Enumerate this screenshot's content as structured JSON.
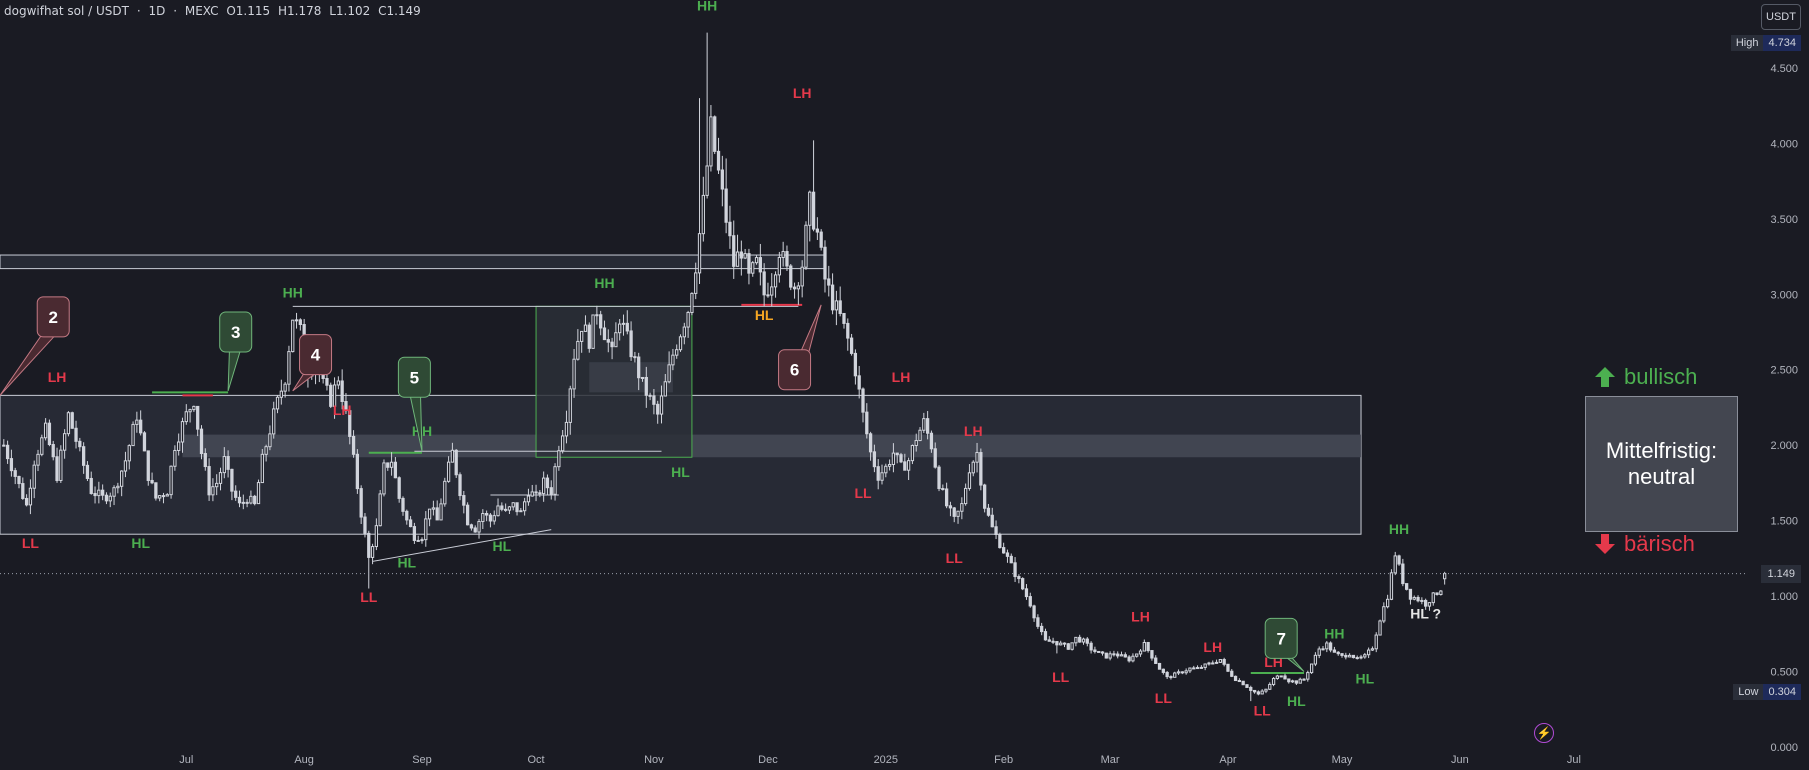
{
  "header": {
    "symbol": "dogwifhat sol / USDT",
    "interval": "1D",
    "exchange": "MEXC",
    "open": "O1.115",
    "high": "H1.178",
    "low": "L1.102",
    "close": "C1.149"
  },
  "currency_label": "USDT",
  "high_badge": {
    "label": "High",
    "value": "4.734"
  },
  "low_badge": {
    "label": "Low",
    "value": "0.304"
  },
  "last_price": "1.149",
  "bull_label": "bullisch",
  "bear_label": "bärisch",
  "outlook_lines": [
    "Mittelfristig:",
    "neutral"
  ],
  "colors": {
    "green": "#4caf50",
    "red": "#e5394b",
    "orange": "#f5a623",
    "candle": "#d1d4dc",
    "background": "#1a1b23"
  },
  "chart_data": {
    "type": "candlestick",
    "instrument": "dogwifhat sol / USDT",
    "timeframe": "1D",
    "price_axis": {
      "ticks": [
        0.0,
        0.5,
        1.0,
        1.5,
        2.0,
        2.5,
        3.0,
        3.5,
        4.0,
        4.5
      ],
      "tick_labels": [
        "0.000",
        "0.500",
        "1.000",
        "1.500",
        "2.000",
        "2.500",
        "3.000",
        "3.500",
        "4.000",
        "4.500"
      ],
      "range": [
        -0.02,
        4.95
      ]
    },
    "time_axis": {
      "labels": [
        "Jul",
        "Aug",
        "Sep",
        "Oct",
        "Nov",
        "Dec",
        "2025",
        "Feb",
        "Mar",
        "Apr",
        "May",
        "Jun",
        "Jul"
      ],
      "label_days": [
        0,
        31,
        62,
        92,
        123,
        153,
        184,
        215,
        243,
        274,
        304,
        335,
        365
      ],
      "range": [
        -49,
        410
      ]
    },
    "close_path": [
      [
        -48,
        2.0
      ],
      [
        -45,
        1.8
      ],
      [
        -42,
        1.6
      ],
      [
        -40,
        1.9
      ],
      [
        -37,
        2.1
      ],
      [
        -34,
        1.8
      ],
      [
        -31,
        2.2
      ],
      [
        -28,
        1.95
      ],
      [
        -25,
        1.7
      ],
      [
        -22,
        1.65
      ],
      [
        -19,
        1.7
      ],
      [
        -16,
        1.9
      ],
      [
        -13,
        2.2
      ],
      [
        -10,
        1.8
      ],
      [
        -8,
        1.65
      ],
      [
        -5,
        1.7
      ],
      [
        -3,
        2.0
      ],
      [
        0,
        2.2
      ],
      [
        2,
        2.3
      ],
      [
        4,
        1.95
      ],
      [
        6,
        1.7
      ],
      [
        8,
        1.75
      ],
      [
        10,
        1.9
      ],
      [
        12,
        1.7
      ],
      [
        14,
        1.6
      ],
      [
        16,
        1.65
      ],
      [
        18,
        1.6
      ],
      [
        20,
        1.9
      ],
      [
        23,
        2.2
      ],
      [
        26,
        2.45
      ],
      [
        28,
        2.85
      ],
      [
        30,
        2.75
      ],
      [
        32,
        2.5
      ],
      [
        34,
        2.55
      ],
      [
        36,
        2.4
      ],
      [
        38,
        2.3
      ],
      [
        40,
        2.45
      ],
      [
        42,
        2.2
      ],
      [
        44,
        1.9
      ],
      [
        46,
        1.55
      ],
      [
        48,
        1.25
      ],
      [
        50,
        1.45
      ],
      [
        52,
        1.85
      ],
      [
        54,
        1.9
      ],
      [
        56,
        1.65
      ],
      [
        58,
        1.5
      ],
      [
        60,
        1.4
      ],
      [
        62,
        1.4
      ],
      [
        64,
        1.6
      ],
      [
        66,
        1.5
      ],
      [
        68,
        1.75
      ],
      [
        70,
        1.95
      ],
      [
        72,
        1.7
      ],
      [
        74,
        1.5
      ],
      [
        76,
        1.45
      ],
      [
        78,
        1.55
      ],
      [
        80,
        1.5
      ],
      [
        82,
        1.6
      ],
      [
        84,
        1.55
      ],
      [
        86,
        1.6
      ],
      [
        88,
        1.55
      ],
      [
        90,
        1.7
      ],
      [
        92,
        1.65
      ],
      [
        94,
        1.75
      ],
      [
        96,
        1.7
      ],
      [
        98,
        2.0
      ],
      [
        100,
        2.2
      ],
      [
        102,
        2.6
      ],
      [
        104,
        2.8
      ],
      [
        106,
        2.7
      ],
      [
        108,
        2.9
      ],
      [
        110,
        2.75
      ],
      [
        112,
        2.6
      ],
      [
        114,
        2.85
      ],
      [
        116,
        2.7
      ],
      [
        118,
        2.55
      ],
      [
        120,
        2.4
      ],
      [
        122,
        2.3
      ],
      [
        124,
        2.2
      ],
      [
        126,
        2.4
      ],
      [
        128,
        2.6
      ],
      [
        130,
        2.75
      ],
      [
        132,
        2.9
      ],
      [
        134,
        3.2
      ],
      [
        136,
        3.6
      ],
      [
        138,
        4.1
      ],
      [
        140,
        3.8
      ],
      [
        142,
        3.5
      ],
      [
        144,
        3.2
      ],
      [
        146,
        3.3
      ],
      [
        148,
        3.1
      ],
      [
        150,
        3.2
      ],
      [
        152,
        3.0
      ],
      [
        154,
        3.1
      ],
      [
        156,
        3.3
      ],
      [
        158,
        3.15
      ],
      [
        160,
        3.05
      ],
      [
        162,
        3.2
      ],
      [
        164,
        3.6
      ],
      [
        166,
        3.4
      ],
      [
        168,
        3.1
      ],
      [
        170,
        2.95
      ],
      [
        172,
        2.85
      ],
      [
        174,
        2.7
      ],
      [
        176,
        2.5
      ],
      [
        178,
        2.2
      ],
      [
        180,
        1.95
      ],
      [
        182,
        1.8
      ],
      [
        184,
        1.85
      ],
      [
        186,
        1.95
      ],
      [
        188,
        1.85
      ],
      [
        190,
        1.9
      ],
      [
        192,
        2.05
      ],
      [
        194,
        2.15
      ],
      [
        196,
        2.0
      ],
      [
        198,
        1.75
      ],
      [
        200,
        1.6
      ],
      [
        202,
        1.5
      ],
      [
        204,
        1.6
      ],
      [
        206,
        1.85
      ],
      [
        208,
        1.95
      ],
      [
        210,
        1.6
      ],
      [
        212,
        1.45
      ],
      [
        214,
        1.35
      ],
      [
        216,
        1.25
      ],
      [
        218,
        1.15
      ],
      [
        220,
        1.05
      ],
      [
        222,
        0.95
      ],
      [
        224,
        0.8
      ],
      [
        226,
        0.7
      ],
      [
        228,
        0.7
      ],
      [
        230,
        0.68
      ],
      [
        232,
        0.66
      ],
      [
        234,
        0.72
      ],
      [
        236,
        0.7
      ],
      [
        238,
        0.65
      ],
      [
        240,
        0.62
      ],
      [
        242,
        0.6
      ],
      [
        244,
        0.62
      ],
      [
        246,
        0.6
      ],
      [
        248,
        0.58
      ],
      [
        250,
        0.62
      ],
      [
        252,
        0.68
      ],
      [
        254,
        0.6
      ],
      [
        256,
        0.52
      ],
      [
        258,
        0.46
      ],
      [
        260,
        0.48
      ],
      [
        262,
        0.5
      ],
      [
        264,
        0.52
      ],
      [
        266,
        0.52
      ],
      [
        268,
        0.54
      ],
      [
        270,
        0.56
      ],
      [
        272,
        0.58
      ],
      [
        274,
        0.5
      ],
      [
        276,
        0.45
      ],
      [
        278,
        0.42
      ],
      [
        280,
        0.38
      ],
      [
        282,
        0.35
      ],
      [
        284,
        0.38
      ],
      [
        286,
        0.45
      ],
      [
        288,
        0.48
      ],
      [
        290,
        0.44
      ],
      [
        292,
        0.43
      ],
      [
        294,
        0.45
      ],
      [
        296,
        0.55
      ],
      [
        298,
        0.65
      ],
      [
        300,
        0.68
      ],
      [
        302,
        0.62
      ],
      [
        304,
        0.6
      ],
      [
        306,
        0.62
      ],
      [
        308,
        0.58
      ],
      [
        310,
        0.6
      ],
      [
        312,
        0.66
      ],
      [
        314,
        0.85
      ],
      [
        316,
        1.0
      ],
      [
        318,
        1.28
      ],
      [
        320,
        1.1
      ],
      [
        322,
        1.0
      ],
      [
        324,
        0.98
      ],
      [
        326,
        0.95
      ],
      [
        328,
        1.0
      ],
      [
        330,
        1.05
      ],
      [
        331,
        1.149
      ]
    ],
    "spike_highs": [
      [
        137,
        4.734
      ],
      [
        165,
        4.02
      ],
      [
        135,
        4.3
      ],
      [
        142,
        3.9
      ],
      [
        214,
        1.42
      ]
    ],
    "spike_lows": [
      [
        48,
        1.05
      ],
      [
        280,
        0.304
      ],
      [
        229,
        0.62
      ]
    ],
    "zones": [
      {
        "name": "main-range",
        "x": [
          -49,
          309
        ],
        "y": [
          1.41,
          2.33
        ],
        "fill": "#2a2d38",
        "stroke": "#c9ccd6"
      },
      {
        "name": "mid-band",
        "x": [
          -1,
          309
        ],
        "y": [
          1.92,
          2.07
        ],
        "fill": "#474a56",
        "stroke": "none"
      },
      {
        "name": "upper-bar",
        "x": [
          -49,
          168
        ],
        "y": [
          3.17,
          3.26
        ],
        "fill": "#2a2d38",
        "stroke": "#c9ccd6"
      },
      {
        "name": "oct-box",
        "x": [
          92,
          133
        ],
        "y": [
          1.92,
          2.92
        ],
        "fill": "#2b2f37",
        "stroke": "#4caf50"
      },
      {
        "name": "oct-inner-box",
        "x": [
          106,
          128
        ],
        "y": [
          2.35,
          2.55
        ],
        "fill": "#3b3f4a",
        "stroke": "none"
      }
    ],
    "lines": [
      {
        "from": [
          28,
          2.92
        ],
        "to": [
          161,
          2.92
        ],
        "color": "#c9ccd6"
      },
      {
        "from": [
          -9,
          2.35
        ],
        "to": [
          11,
          2.35
        ],
        "color": "#4caf50"
      },
      {
        "from": [
          48,
          1.95
        ],
        "to": [
          62,
          1.95
        ],
        "color": "#4caf50"
      },
      {
        "from": [
          60,
          1.96
        ],
        "to": [
          125,
          1.96
        ],
        "color": "#c9ccd6"
      },
      {
        "from": [
          49,
          1.23
        ],
        "to": [
          96,
          1.44
        ],
        "color": "#c9ccd6"
      },
      {
        "from": [
          80,
          1.67
        ],
        "to": [
          98,
          1.67
        ],
        "color": "#c9ccd6"
      },
      {
        "from": [
          146,
          2.93
        ],
        "to": [
          162,
          2.93
        ],
        "color": "#e5394b"
      },
      {
        "from": [
          280,
          0.49
        ],
        "to": [
          294,
          0.49
        ],
        "color": "#4caf50"
      },
      {
        "from": [
          -1,
          2.33
        ],
        "to": [
          7,
          2.33
        ],
        "color": "#e5394b"
      }
    ],
    "annotations": [
      {
        "text": "HH",
        "x": 137,
        "y": 4.88,
        "color": "green"
      },
      {
        "text": "LH",
        "x": 162,
        "y": 4.3,
        "color": "red"
      },
      {
        "text": "HH",
        "x": 28,
        "y": 2.98,
        "color": "green"
      },
      {
        "text": "LH",
        "x": -34,
        "y": 2.42,
        "color": "red"
      },
      {
        "text": "LL",
        "x": -41,
        "y": 1.32,
        "color": "red"
      },
      {
        "text": "HL",
        "x": -12,
        "y": 1.32,
        "color": "green"
      },
      {
        "text": "LH",
        "x": 41,
        "y": 2.2,
        "color": "red"
      },
      {
        "text": "HH",
        "x": 62,
        "y": 2.06,
        "color": "green"
      },
      {
        "text": "LL",
        "x": 48,
        "y": 0.96,
        "color": "red"
      },
      {
        "text": "HL",
        "x": 58,
        "y": 1.19,
        "color": "green"
      },
      {
        "text": "HL",
        "x": 83,
        "y": 1.3,
        "color": "green"
      },
      {
        "text": "HH",
        "x": 110,
        "y": 3.04,
        "color": "green"
      },
      {
        "text": "HL",
        "x": 130,
        "y": 1.79,
        "color": "green"
      },
      {
        "text": "HL",
        "x": 152,
        "y": 2.83,
        "color": "orange"
      },
      {
        "text": "LH",
        "x": 188,
        "y": 2.42,
        "color": "red"
      },
      {
        "text": "LL",
        "x": 178,
        "y": 1.65,
        "color": "red"
      },
      {
        "text": "LH",
        "x": 207,
        "y": 2.06,
        "color": "red"
      },
      {
        "text": "LL",
        "x": 202,
        "y": 1.22,
        "color": "red"
      },
      {
        "text": "LL",
        "x": 230,
        "y": 0.43,
        "color": "red"
      },
      {
        "text": "LH",
        "x": 251,
        "y": 0.83,
        "color": "red"
      },
      {
        "text": "LL",
        "x": 257,
        "y": 0.29,
        "color": "red"
      },
      {
        "text": "LH",
        "x": 270,
        "y": 0.63,
        "color": "red"
      },
      {
        "text": "LL",
        "x": 283,
        "y": 0.21,
        "color": "red"
      },
      {
        "text": "LH",
        "x": 286,
        "y": 0.53,
        "color": "red"
      },
      {
        "text": "HL",
        "x": 292,
        "y": 0.27,
        "color": "green"
      },
      {
        "text": "HH",
        "x": 302,
        "y": 0.72,
        "color": "green"
      },
      {
        "text": "HL",
        "x": 310,
        "y": 0.42,
        "color": "green"
      },
      {
        "text": "HH",
        "x": 319,
        "y": 1.41,
        "color": "green"
      },
      {
        "text": "HL ?",
        "x": 326,
        "y": 0.85,
        "color": "white"
      }
    ],
    "callouts": [
      {
        "text": "2",
        "x": -35,
        "y": 2.85,
        "tip": [
          -49,
          2.33
        ],
        "style": "red"
      },
      {
        "text": "3",
        "x": 13,
        "y": 2.75,
        "tip": [
          11,
          2.36
        ],
        "style": "green"
      },
      {
        "text": "4",
        "x": 34,
        "y": 2.6,
        "tip": [
          28,
          2.36
        ],
        "style": "red"
      },
      {
        "text": "5",
        "x": 60,
        "y": 2.45,
        "tip": [
          62,
          1.96
        ],
        "style": "green"
      },
      {
        "text": "6",
        "x": 160,
        "y": 2.5,
        "tip": [
          167,
          2.93
        ],
        "style": "red"
      },
      {
        "text": "7",
        "x": 288,
        "y": 0.72,
        "tip": [
          294,
          0.5
        ],
        "style": "green"
      }
    ]
  }
}
